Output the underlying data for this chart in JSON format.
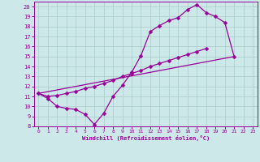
{
  "xlabel": "Windchill (Refroidissement éolien,°C)",
  "bg_color": "#cce8e8",
  "line_color": "#990099",
  "grid_color": "#aacccc",
  "xlim": [
    -0.5,
    23.5
  ],
  "ylim": [
    8,
    20.5
  ],
  "xticks": [
    0,
    1,
    2,
    3,
    4,
    5,
    6,
    7,
    8,
    9,
    10,
    11,
    12,
    13,
    14,
    15,
    16,
    17,
    18,
    19,
    20,
    21,
    22,
    23
  ],
  "yticks": [
    8,
    9,
    10,
    11,
    12,
    13,
    14,
    15,
    16,
    17,
    18,
    19,
    20
  ],
  "line1_x": [
    0,
    1,
    2,
    3,
    4,
    5,
    6,
    7,
    8,
    9,
    10,
    11,
    12,
    13,
    14,
    15,
    16,
    17,
    18,
    19,
    20,
    21
  ],
  "line1_y": [
    11.3,
    10.8,
    10.0,
    9.8,
    9.7,
    9.2,
    8.2,
    9.3,
    11.0,
    12.1,
    13.4,
    15.1,
    17.5,
    18.1,
    18.6,
    18.9,
    19.7,
    20.2,
    19.4,
    19.0,
    18.4,
    15.0
  ],
  "line2_x": [
    0,
    1,
    2,
    3,
    4,
    5,
    6,
    7,
    8,
    9,
    10,
    11,
    12,
    13,
    14,
    15,
    16,
    17,
    18,
    19,
    20,
    21
  ],
  "line2_y": [
    11.3,
    11.0,
    11.1,
    11.3,
    11.5,
    11.8,
    12.0,
    12.3,
    12.6,
    13.0,
    13.3,
    13.6,
    14.0,
    14.3,
    14.6,
    14.9,
    15.2,
    15.5,
    15.8,
    null,
    null,
    null
  ],
  "line3_x": [
    0,
    21
  ],
  "line3_y": [
    11.3,
    15.0
  ],
  "marker": "D",
  "markersize": 2.5,
  "linewidth": 0.9
}
